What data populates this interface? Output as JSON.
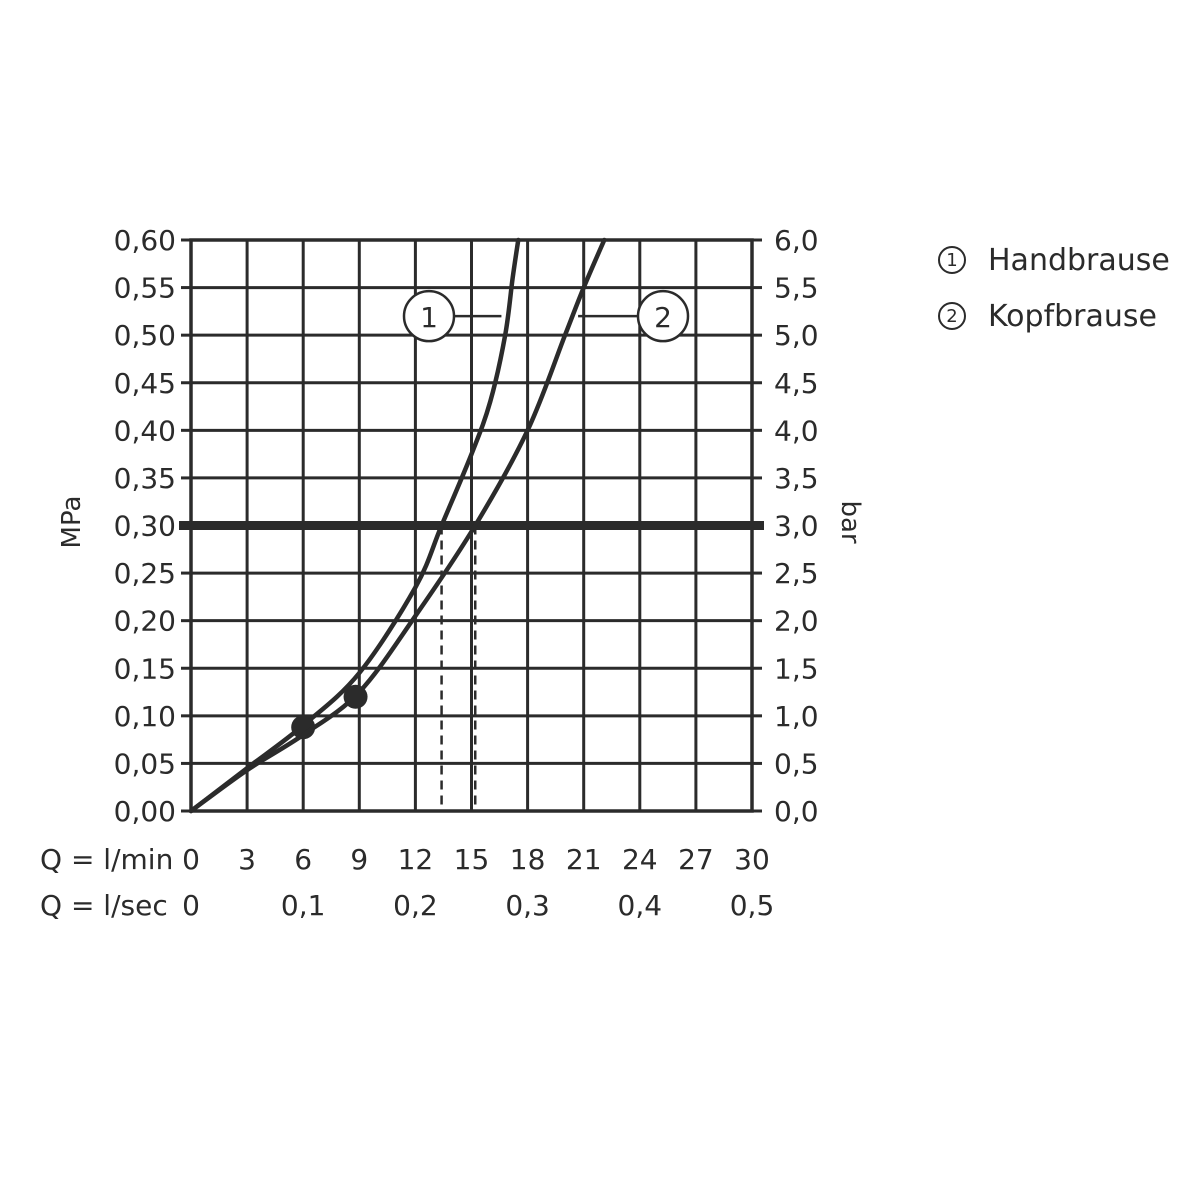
{
  "chart_data": {
    "type": "line",
    "left_axis": {
      "label": "MPa",
      "min": 0,
      "max": 0.6,
      "ticks": [
        "0,00",
        "0,05",
        "0,10",
        "0,15",
        "0,20",
        "0,25",
        "0,30",
        "0,35",
        "0,40",
        "0,45",
        "0,50",
        "0,55",
        "0,60"
      ]
    },
    "right_axis": {
      "label": "bar",
      "min": 0,
      "max": 6,
      "ticks": [
        "0,0",
        "0,5",
        "1,0",
        "1,5",
        "2,0",
        "2,5",
        "3,0",
        "3,5",
        "4,0",
        "4,5",
        "5,0",
        "5,5",
        "6,0"
      ]
    },
    "x_axis_lmin": {
      "label": "Q = l/min",
      "min": 0,
      "max": 30,
      "ticks": [
        "0",
        "3",
        "6",
        "9",
        "12",
        "15",
        "18",
        "21",
        "24",
        "27",
        "30"
      ]
    },
    "x_axis_lsec": {
      "label": "Q = l/sec",
      "ticks": [
        {
          "value": 0,
          "label": "0"
        },
        {
          "value": 0.1,
          "label": "0,1"
        },
        {
          "value": 0.2,
          "label": "0,2"
        },
        {
          "value": 0.3,
          "label": "0,3"
        },
        {
          "value": 0.4,
          "label": "0,4"
        },
        {
          "value": 0.5,
          "label": "0,5"
        }
      ]
    },
    "grid": true,
    "reference_line_mpa": 0.3,
    "series": [
      {
        "id": "1",
        "name": "Handbrause",
        "points": [
          [
            0,
            0
          ],
          [
            3,
            0.045
          ],
          [
            6,
            0.09
          ],
          [
            9,
            0.145
          ],
          [
            12,
            0.235
          ],
          [
            13.4,
            0.3
          ],
          [
            15,
            0.375
          ],
          [
            16,
            0.43
          ],
          [
            16.8,
            0.5
          ],
          [
            17.2,
            0.56
          ],
          [
            17.5,
            0.6
          ]
        ],
        "marker": [
          6,
          0.088
        ],
        "flow_at_reference": 13.4
      },
      {
        "id": "2",
        "name": "Kopfbrause",
        "points": [
          [
            0,
            0
          ],
          [
            3,
            0.043
          ],
          [
            6,
            0.08
          ],
          [
            9,
            0.125
          ],
          [
            12,
            0.205
          ],
          [
            15.2,
            0.3
          ],
          [
            18,
            0.4
          ],
          [
            20,
            0.5
          ],
          [
            21,
            0.55
          ],
          [
            22.1,
            0.6
          ]
        ],
        "marker": [
          8.8,
          0.12
        ],
        "flow_at_reference": 15.2
      }
    ],
    "legend_placement": "right"
  },
  "legend": {
    "items": [
      {
        "num": "1",
        "label": "Handbrause"
      },
      {
        "num": "2",
        "label": "Kopfbrause"
      }
    ]
  }
}
